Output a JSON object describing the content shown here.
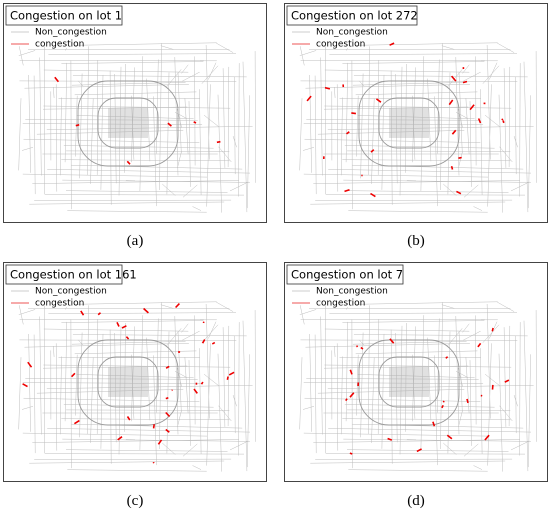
{
  "panels": [
    {
      "title": "Congestion on lot 1",
      "legend": [
        "Non_congestion",
        "congestion"
      ],
      "caption": "(a)"
    },
    {
      "title": "Congestion on lot 272",
      "legend": [
        "Non_congestion",
        "congestion"
      ],
      "caption": "(b)"
    },
    {
      "title": "Congestion on lot 161",
      "legend": [
        "Non_congestion",
        "congestion"
      ],
      "caption": "(c)"
    },
    {
      "title": "Congestion on lot 7",
      "legend": [
        "Non_congestion",
        "congestion"
      ],
      "caption": "(d)"
    }
  ]
}
